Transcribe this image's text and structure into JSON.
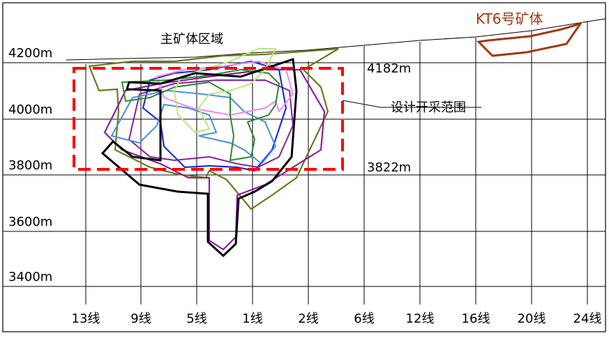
{
  "elevations": [
    "4200m",
    "4000m",
    "3800m",
    "3600m",
    "3400m"
  ],
  "lines": [
    "13线",
    "9线",
    "5线",
    "1线",
    "2线",
    "6线",
    "12线",
    "16线",
    "20线",
    "24线"
  ],
  "labels": {
    "main_zone": "主矿体区域",
    "kt6": "KT6号矿体",
    "design_range": "设计开采范围",
    "top_level": "4182m",
    "bottom_level": "3822m"
  },
  "colors": {
    "grid": "#000000",
    "design_box": "#ff0000",
    "kt6": "#a0380f",
    "olive": "#6b7a1a",
    "purple": "#8a1fa0",
    "blue": "#2030d0",
    "light_blue": "#4a8de8",
    "pink": "#ee88ee",
    "green": "#2a8a2a",
    "light_green": "#b8e878",
    "black": "#000000"
  }
}
